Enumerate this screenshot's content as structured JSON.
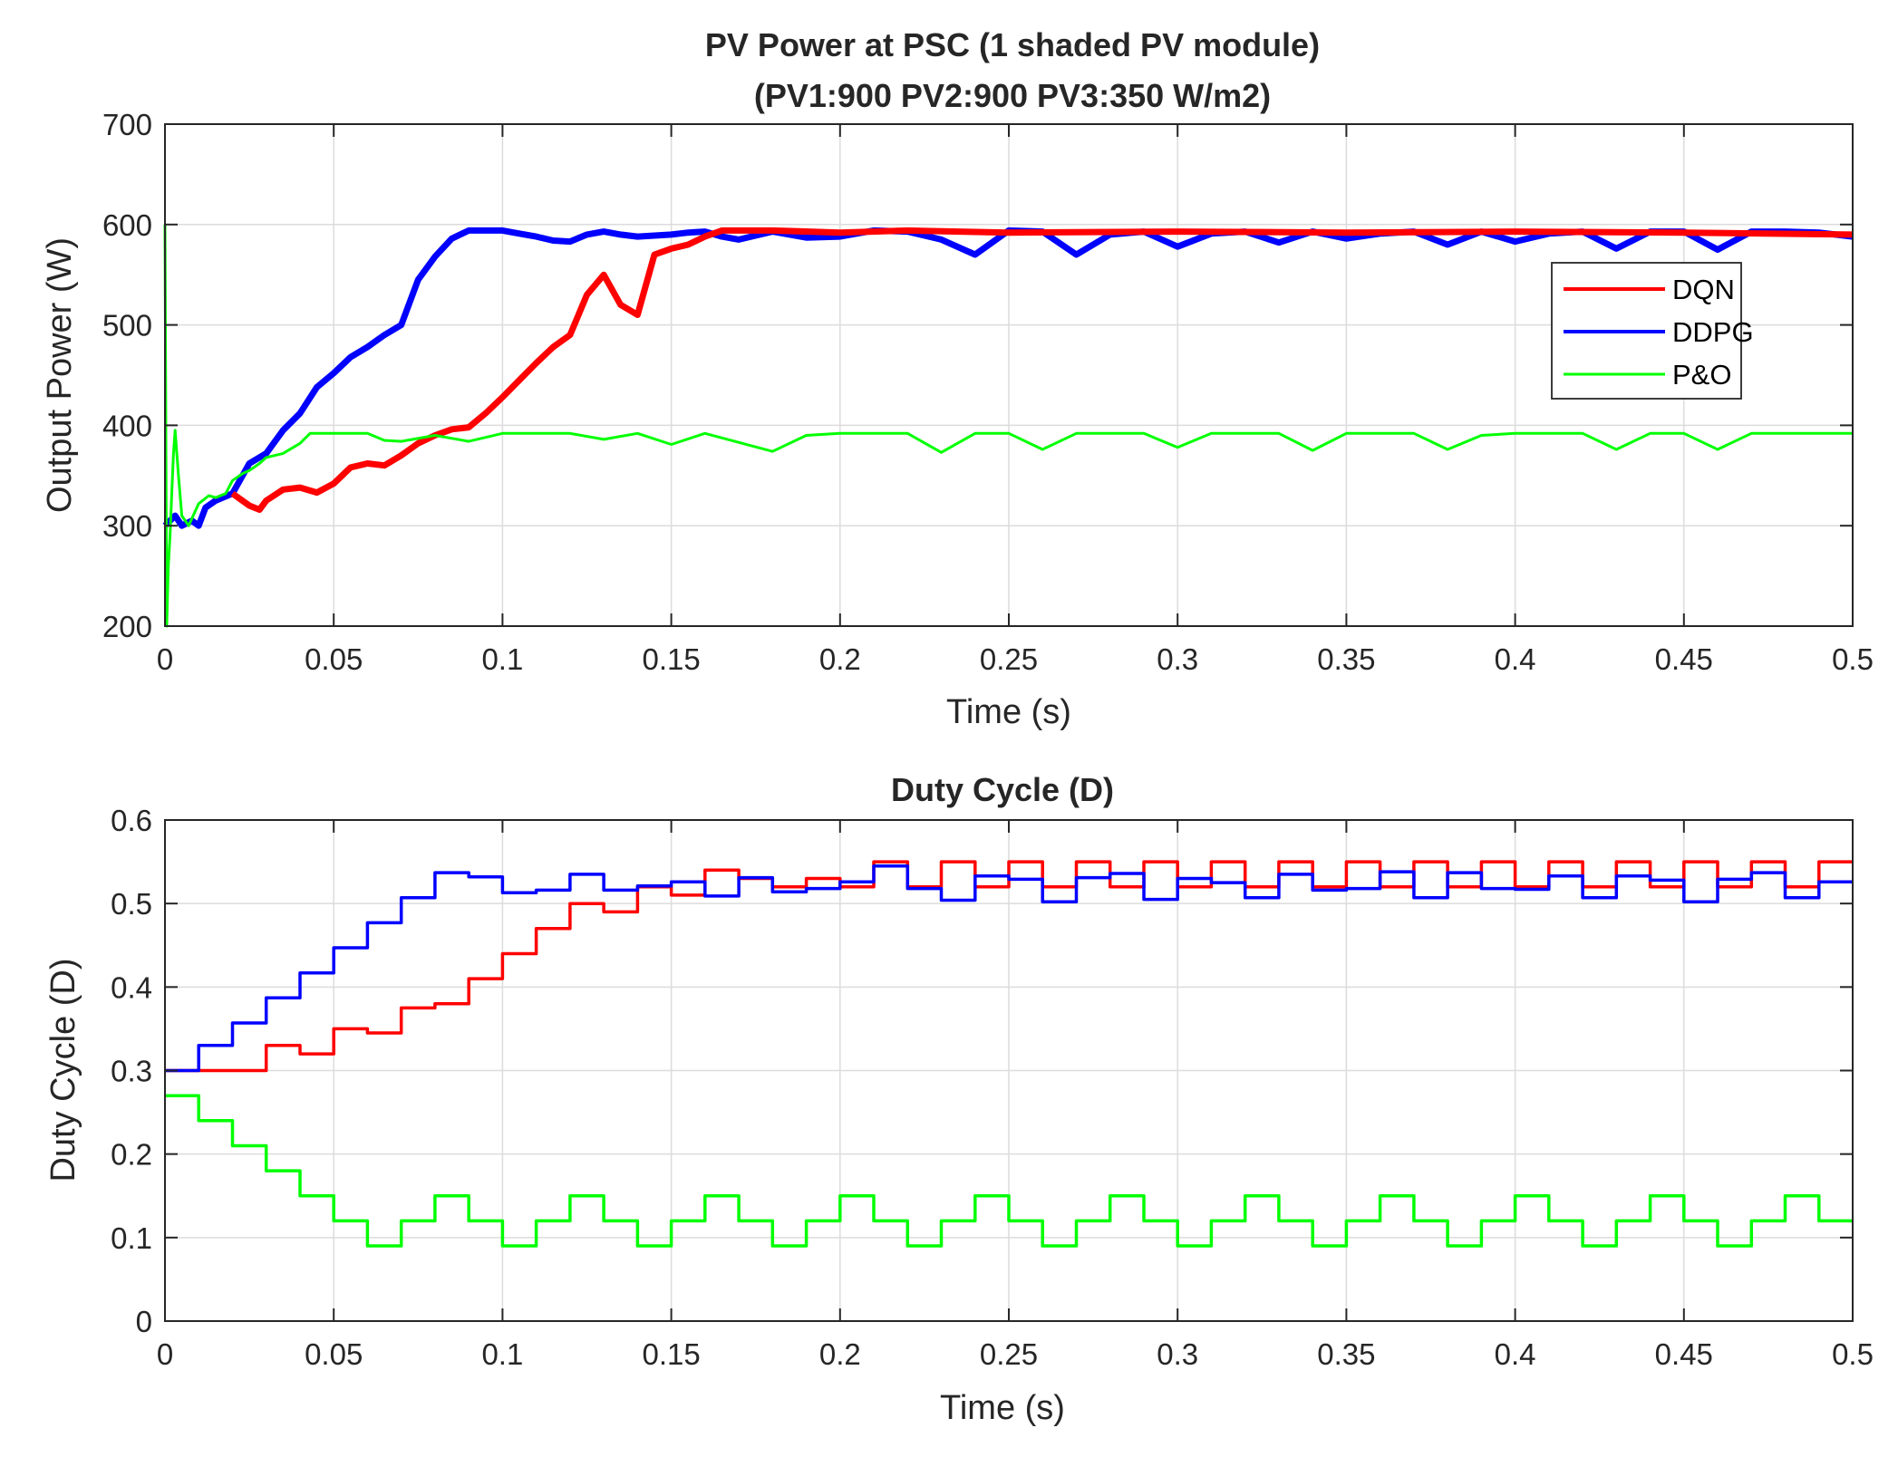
{
  "chart_data": [
    {
      "type": "line",
      "title": [
        "PV Power at PSC (1 shaded PV module)",
        "(PV1:900 PV2:900 PV3:350 W/m2)"
      ],
      "xlabel": "Time (s)",
      "ylabel": "Output Power (W)",
      "xlim": [
        0,
        0.5
      ],
      "ylim": [
        200,
        700
      ],
      "xticks": [
        0,
        0.05,
        0.1,
        0.15,
        0.2,
        0.25,
        0.3,
        0.35,
        0.4,
        0.45,
        0.5
      ],
      "xtick_labels": [
        "0",
        "0.05",
        "0.1",
        "0.15",
        "0.2",
        "0.25",
        "0.3",
        "0.35",
        "0.4",
        "0.45",
        "0.5"
      ],
      "yticks": [
        200,
        300,
        400,
        500,
        600,
        700
      ],
      "ytick_labels": [
        "200",
        "300",
        "400",
        "500",
        "600",
        "700"
      ],
      "grid": true,
      "legend": {
        "position": "right",
        "entries": [
          "DQN",
          "DDPG",
          "P&O"
        ]
      },
      "series": [
        {
          "name": "DDPG",
          "color": "#0000ff",
          "width": 7,
          "x": [
            0,
            0.003,
            0.005,
            0.008,
            0.01,
            0.012,
            0.015,
            0.02,
            0.025,
            0.03,
            0.035,
            0.04,
            0.045,
            0.05,
            0.055,
            0.06,
            0.065,
            0.07,
            0.075,
            0.08,
            0.085,
            0.09,
            0.095,
            0.1,
            0.105,
            0.11,
            0.115,
            0.12,
            0.125,
            0.13,
            0.135,
            0.14,
            0.145,
            0.15,
            0.155,
            0.16,
            0.165,
            0.17,
            0.18,
            0.19,
            0.2,
            0.21,
            0.22,
            0.23,
            0.24,
            0.25,
            0.26,
            0.27,
            0.28,
            0.29,
            0.3,
            0.31,
            0.32,
            0.33,
            0.34,
            0.35,
            0.36,
            0.37,
            0.38,
            0.39,
            0.4,
            0.41,
            0.42,
            0.43,
            0.44,
            0.45,
            0.46,
            0.47,
            0.48,
            0.49,
            0.5
          ],
          "y": [
            300,
            310,
            300,
            305,
            300,
            318,
            325,
            332,
            362,
            372,
            395,
            412,
            438,
            452,
            468,
            478,
            490,
            500,
            545,
            568,
            586,
            594,
            594,
            594,
            591,
            588,
            584,
            583,
            590,
            593,
            590,
            588,
            589,
            590,
            592,
            593,
            588,
            585,
            593,
            587,
            588,
            594,
            593,
            585,
            570,
            594,
            593,
            570,
            590,
            593,
            578,
            591,
            593,
            582,
            593,
            586,
            591,
            593,
            580,
            593,
            583,
            591,
            593,
            576,
            593,
            593,
            575,
            593,
            593,
            592,
            588
          ]
        },
        {
          "name": "DQN",
          "color": "#ff0000",
          "width": 7,
          "x": [
            0.02,
            0.025,
            0.028,
            0.03,
            0.035,
            0.04,
            0.045,
            0.05,
            0.055,
            0.06,
            0.065,
            0.07,
            0.075,
            0.08,
            0.085,
            0.09,
            0.095,
            0.1,
            0.105,
            0.11,
            0.115,
            0.12,
            0.125,
            0.13,
            0.135,
            0.14,
            0.145,
            0.15,
            0.155,
            0.16,
            0.165,
            0.17,
            0.18,
            0.2,
            0.22,
            0.25,
            0.3,
            0.35,
            0.4,
            0.45,
            0.5
          ],
          "y": [
            332,
            320,
            316,
            325,
            336,
            338,
            333,
            342,
            358,
            362,
            360,
            370,
            382,
            390,
            396,
            398,
            412,
            428,
            445,
            462,
            478,
            490,
            530,
            550,
            520,
            510,
            570,
            576,
            580,
            588,
            594,
            594,
            594,
            592,
            594,
            592,
            593,
            592,
            593,
            592,
            590
          ]
        },
        {
          "name": "P&O",
          "color": "#00ff00",
          "width": 3,
          "x": [
            0,
            0.0005,
            0.001,
            0.0015,
            0.002,
            0.0025,
            0.003,
            0.004,
            0.005,
            0.007,
            0.01,
            0.013,
            0.015,
            0.018,
            0.02,
            0.023,
            0.025,
            0.028,
            0.03,
            0.035,
            0.04,
            0.043,
            0.045,
            0.05,
            0.06,
            0.065,
            0.07,
            0.08,
            0.09,
            0.1,
            0.12,
            0.13,
            0.14,
            0.15,
            0.16,
            0.18,
            0.19,
            0.2,
            0.22,
            0.23,
            0.24,
            0.25,
            0.26,
            0.27,
            0.28,
            0.29,
            0.3,
            0.31,
            0.32,
            0.33,
            0.34,
            0.35,
            0.36,
            0.37,
            0.38,
            0.39,
            0.4,
            0.41,
            0.42,
            0.43,
            0.44,
            0.45,
            0.46,
            0.47,
            0.48,
            0.49,
            0.5
          ],
          "y": [
            600,
            200,
            260,
            290,
            330,
            370,
            395,
            350,
            310,
            300,
            322,
            330,
            328,
            332,
            345,
            352,
            355,
            362,
            368,
            372,
            382,
            392,
            392,
            392,
            392,
            385,
            384,
            390,
            384,
            392,
            392,
            386,
            392,
            381,
            392,
            374,
            390,
            392,
            392,
            373,
            392,
            392,
            376,
            392,
            392,
            392,
            378,
            392,
            392,
            392,
            375,
            392,
            392,
            392,
            376,
            390,
            392,
            392,
            392,
            376,
            392,
            392,
            376,
            392,
            392,
            392,
            392
          ]
        }
      ]
    },
    {
      "type": "line",
      "title": [
        "Duty Cycle (D)"
      ],
      "xlabel": "Time (s)",
      "ylabel": "Duty Cycle (D)",
      "xlim": [
        0,
        0.5
      ],
      "ylim": [
        0,
        0.6
      ],
      "xticks": [
        0,
        0.05,
        0.1,
        0.15,
        0.2,
        0.25,
        0.3,
        0.35,
        0.4,
        0.45,
        0.5
      ],
      "xtick_labels": [
        "0",
        "0.05",
        "0.1",
        "0.15",
        "0.2",
        "0.25",
        "0.3",
        "0.35",
        "0.4",
        "0.45",
        "0.5"
      ],
      "yticks": [
        0,
        0.1,
        0.2,
        0.3,
        0.4,
        0.5,
        0.6
      ],
      "ytick_labels": [
        "0",
        "0.1",
        "0.2",
        "0.3",
        "0.4",
        "0.5",
        "0.6"
      ],
      "grid": true,
      "step_interval": 0.01,
      "series": [
        {
          "name": "DQN",
          "color": "#ff0000",
          "width": 3.5,
          "values": [
            0.3,
            0.3,
            0.3,
            0.33,
            0.32,
            0.35,
            0.345,
            0.375,
            0.38,
            0.41,
            0.44,
            0.47,
            0.5,
            0.49,
            0.52,
            0.51,
            0.54,
            0.53,
            0.52,
            0.53,
            0.52,
            0.55,
            0.52,
            0.55,
            0.52,
            0.55,
            0.52,
            0.55,
            0.52,
            0.55,
            0.52,
            0.55,
            0.52,
            0.55,
            0.52,
            0.55,
            0.52,
            0.55,
            0.52,
            0.55,
            0.52,
            0.55,
            0.52,
            0.55,
            0.52,
            0.55,
            0.52,
            0.55,
            0.52,
            0.55
          ]
        },
        {
          "name": "DDPG",
          "color": "#0000ff",
          "width": 3.5,
          "values": [
            0.3,
            0.33,
            0.357,
            0.387,
            0.417,
            0.447,
            0.477,
            0.507,
            0.537,
            0.532,
            0.513,
            0.516,
            0.535,
            0.516,
            0.521,
            0.526,
            0.509,
            0.531,
            0.514,
            0.518,
            0.526,
            0.545,
            0.518,
            0.504,
            0.533,
            0.529,
            0.502,
            0.531,
            0.536,
            0.505,
            0.53,
            0.525,
            0.507,
            0.535,
            0.516,
            0.518,
            0.538,
            0.507,
            0.537,
            0.518,
            0.517,
            0.533,
            0.507,
            0.533,
            0.528,
            0.502,
            0.529,
            0.537,
            0.507,
            0.526
          ]
        },
        {
          "name": "P&O",
          "color": "#00ff00",
          "width": 3.5,
          "values": [
            0.27,
            0.24,
            0.21,
            0.18,
            0.15,
            0.12,
            0.09,
            0.12,
            0.15,
            0.12,
            0.09,
            0.12,
            0.15,
            0.12,
            0.09,
            0.12,
            0.15,
            0.12,
            0.09,
            0.12,
            0.15,
            0.12,
            0.09,
            0.12,
            0.15,
            0.12,
            0.09,
            0.12,
            0.15,
            0.12,
            0.09,
            0.12,
            0.15,
            0.12,
            0.09,
            0.12,
            0.15,
            0.12,
            0.09,
            0.12,
            0.15,
            0.12,
            0.09,
            0.12,
            0.15,
            0.12,
            0.09,
            0.12,
            0.15,
            0.12
          ]
        }
      ]
    }
  ]
}
